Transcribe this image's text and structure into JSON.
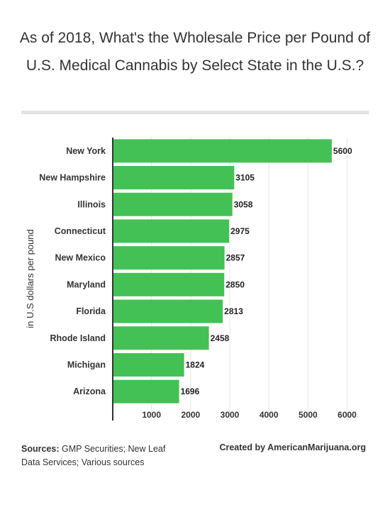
{
  "title": "As of 2018, What's the Wholesale Price per Pound of U.S. Medical Cannabis by Select State in the U.S.?",
  "footer": {
    "sources_label": "Sources:",
    "sources_text": "GMP Securities; New Leaf Data Services; Various sources",
    "credit": "Created by AmericanMarijuana.org"
  },
  "colors": {
    "bar": "#44c155",
    "grid": "#e6e6e6",
    "axis": "#333333"
  },
  "chart_data": {
    "type": "bar",
    "orientation": "horizontal",
    "categories": [
      "New York",
      "New Hampshire",
      "Illinois",
      "Connecticut",
      "New Mexico",
      "Maryland",
      "Florida",
      "Rhode Island",
      "Michigan",
      "Arizona"
    ],
    "values": [
      5600,
      3105,
      3058,
      2975,
      2857,
      2850,
      2813,
      2458,
      1824,
      1696
    ],
    "ylabel": "in U.S dollars per pound",
    "xticks": [
      1000,
      2000,
      3000,
      4000,
      5000,
      6000
    ],
    "xlim": [
      0,
      6000
    ],
    "grid": true,
    "data_labels": true
  }
}
